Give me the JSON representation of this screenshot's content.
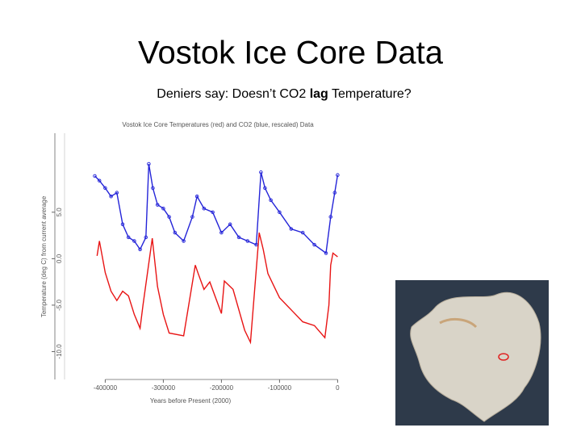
{
  "slide": {
    "title": "Vostok Ice Core Data",
    "subtitle": {
      "before": "Deniers say: Doesn’t CO2 ",
      "bold": "lag",
      "after": " Temperature?"
    }
  },
  "chart_data": {
    "type": "line",
    "title": "Vostok Ice Core Temperatures (red) and CO2 (blue, rescaled) Data",
    "x_label": "Years before Present (2000)",
    "y_label": "Temperature (deg C) from current average",
    "xlim": [
      -470000,
      55000
    ],
    "ylim": [
      -13,
      13.5
    ],
    "xticks": [
      -400000,
      -300000,
      -200000,
      -100000,
      0
    ],
    "yticks": [
      {
        "value": -10,
        "label": "-10.0"
      },
      {
        "value": -5,
        "label": "-5.0"
      },
      {
        "value": 0,
        "label": "0.0"
      },
      {
        "value": 5,
        "label": "5.0"
      }
    ],
    "grid": false,
    "series": [
      {
        "name": "CO2",
        "color": "#2424d8",
        "markers": true,
        "x": [
          -418000,
          -410000,
          -400000,
          -390000,
          -380000,
          -370000,
          -360000,
          -350000,
          -340000,
          -330000,
          -325000,
          -318000,
          -310000,
          -300000,
          -290000,
          -280000,
          -265000,
          -250000,
          -242000,
          -230000,
          -215000,
          -200000,
          -185000,
          -170000,
          -155000,
          -140000,
          -132000,
          -125000,
          -115000,
          -100000,
          -80000,
          -60000,
          -40000,
          -20000,
          -12000,
          -5000,
          0
        ],
        "values": [
          8.9,
          8.4,
          7.6,
          6.7,
          7.1,
          3.7,
          2.3,
          1.9,
          1.0,
          2.3,
          10.2,
          7.6,
          5.8,
          5.4,
          4.5,
          2.8,
          1.9,
          4.5,
          6.7,
          5.4,
          5.0,
          2.8,
          3.7,
          2.3,
          1.9,
          1.5,
          9.3,
          7.6,
          6.3,
          5.0,
          3.2,
          2.8,
          1.5,
          0.6,
          4.5,
          7.1,
          9.0
        ]
      },
      {
        "name": "Temperature",
        "color": "#e81414",
        "markers": false,
        "x": [
          -414000,
          -410000,
          -400000,
          -390000,
          -380000,
          -370000,
          -360000,
          -350000,
          -340000,
          -335000,
          -319000,
          -310000,
          -300000,
          -290000,
          -265000,
          -245000,
          -240000,
          -230000,
          -220000,
          -200000,
          -195000,
          -180000,
          -160000,
          -150000,
          -135000,
          -128000,
          -120000,
          -110000,
          -100000,
          -80000,
          -60000,
          -40000,
          -22000,
          -15000,
          -12000,
          -8000,
          0
        ],
        "values": [
          0.3,
          1.9,
          -1.5,
          -3.5,
          -4.5,
          -3.5,
          -4.0,
          -6.0,
          -7.5,
          -5.0,
          2.2,
          -3.0,
          -6.0,
          -8.0,
          -8.3,
          -0.7,
          -1.6,
          -3.3,
          -2.5,
          -5.9,
          -2.4,
          -3.3,
          -7.7,
          -9.0,
          2.8,
          1.0,
          -1.6,
          -2.9,
          -4.2,
          -5.5,
          -6.8,
          -7.2,
          -8.5,
          -5.0,
          -0.7,
          0.6,
          0.2
        ]
      }
    ]
  }
}
